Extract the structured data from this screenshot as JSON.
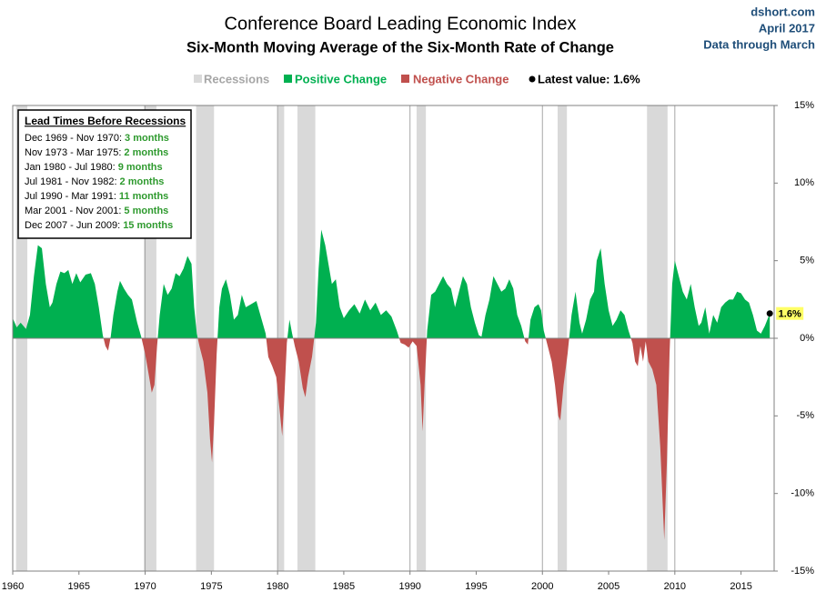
{
  "chart_data": {
    "type": "area",
    "title": "Conference Board Leading Economic Index",
    "subtitle": "Six-Month  Moving Average of the Six-Month  Rate of Change",
    "source": [
      "dshort.com",
      "April 2017",
      "Data through March"
    ],
    "legend_position": "top",
    "recessions": {
      "name": "Recessions",
      "color": "#d9d9d9",
      "ranges": [
        [
          1960.25,
          1961.1
        ],
        [
          1969.9,
          1970.85
        ],
        [
          1973.85,
          1975.2
        ],
        [
          1980.0,
          1980.5
        ],
        [
          1981.5,
          1982.85
        ],
        [
          1990.5,
          1991.2
        ],
        [
          2001.15,
          2001.85
        ],
        [
          2007.9,
          2009.45
        ]
      ]
    },
    "positive": {
      "name": "Positive Change",
      "color": "#00b050"
    },
    "negative": {
      "name": "Negative Change",
      "color": "#c0504d"
    },
    "latest": {
      "name": "Latest value: 1.6%",
      "x": 2017.17,
      "value": 1.6,
      "label": "1.6%",
      "color": "#000000",
      "highlight": "#ffff66"
    },
    "annotation": {
      "title": "Lead Times Before Recessions",
      "items": [
        {
          "period": "Dec 1969 - Nov 1970:",
          "lead": "3 months"
        },
        {
          "period": "Nov 1973 - Mar 1975:",
          "lead": "2 months"
        },
        {
          "period": "Jan 1980 - Jul 1980:",
          "lead": "9 months"
        },
        {
          "period": "Jul 1981 - Nov 1982:",
          "lead": "2 months"
        },
        {
          "period": "Jul 1990 - Mar 1991:",
          "lead": "11 months"
        },
        {
          "period": "Mar 2001 - Nov 2001:",
          "lead": "5 months"
        },
        {
          "period": "Dec 2007 - Jun 2009:",
          "lead": "15 months"
        }
      ]
    },
    "x": [
      1960.0,
      1960.3,
      1960.6,
      1961.0,
      1961.3,
      1961.6,
      1961.9,
      1962.2,
      1962.5,
      1962.8,
      1963.0,
      1963.3,
      1963.6,
      1963.9,
      1964.2,
      1964.5,
      1964.8,
      1965.1,
      1965.5,
      1965.9,
      1966.2,
      1966.5,
      1966.8,
      1967.0,
      1967.2,
      1967.4,
      1967.6,
      1967.9,
      1968.1,
      1968.4,
      1968.7,
      1969.0,
      1969.4,
      1969.7,
      1970.0,
      1970.3,
      1970.5,
      1970.7,
      1970.9,
      1971.1,
      1971.4,
      1971.7,
      1972.0,
      1972.3,
      1972.6,
      1972.9,
      1973.2,
      1973.5,
      1973.7,
      1973.9,
      1974.1,
      1974.4,
      1974.7,
      1974.9,
      1975.05,
      1975.2,
      1975.4,
      1975.6,
      1975.8,
      1976.1,
      1976.4,
      1976.7,
      1977.0,
      1977.3,
      1977.6,
      1978.0,
      1978.4,
      1978.8,
      1979.1,
      1979.3,
      1979.6,
      1979.9,
      1980.2,
      1980.35,
      1980.5,
      1980.7,
      1980.9,
      1981.1,
      1981.3,
      1981.6,
      1981.9,
      1982.1,
      1982.3,
      1982.6,
      1982.9,
      1983.1,
      1983.3,
      1983.6,
      1983.9,
      1984.1,
      1984.4,
      1984.7,
      1985.0,
      1985.4,
      1985.8,
      1986.2,
      1986.6,
      1987.0,
      1987.4,
      1987.8,
      1988.2,
      1988.6,
      1989.0,
      1989.3,
      1989.6,
      1989.9,
      1990.2,
      1990.5,
      1990.8,
      1990.95,
      1991.1,
      1991.3,
      1991.6,
      1991.9,
      1992.2,
      1992.5,
      1992.8,
      1993.1,
      1993.4,
      1993.7,
      1994.0,
      1994.3,
      1994.6,
      1994.9,
      1995.2,
      1995.4,
      1995.7,
      1996.0,
      1996.3,
      1996.6,
      1996.9,
      1997.2,
      1997.5,
      1997.8,
      1998.1,
      1998.4,
      1998.7,
      1998.9,
      1999.1,
      1999.4,
      1999.7,
      1999.9,
      2000.1,
      2000.4,
      2000.7,
      2000.95,
      2001.2,
      2001.35,
      2001.6,
      2001.9,
      2002.2,
      2002.5,
      2002.8,
      2003.0,
      2003.3,
      2003.6,
      2003.9,
      2004.1,
      2004.4,
      2004.7,
      2005.0,
      2005.3,
      2005.6,
      2005.9,
      2006.2,
      2006.5,
      2006.8,
      2007.0,
      2007.2,
      2007.4,
      2007.6,
      2007.8,
      2008.0,
      2008.3,
      2008.6,
      2008.9,
      2009.2,
      2009.4,
      2009.6,
      2009.8,
      2010.0,
      2010.3,
      2010.6,
      2010.9,
      2011.2,
      2011.5,
      2011.8,
      2012.0,
      2012.3,
      2012.6,
      2012.9,
      2013.2,
      2013.5,
      2013.8,
      2014.1,
      2014.4,
      2014.7,
      2015.0,
      2015.3,
      2015.6,
      2015.9,
      2016.2,
      2016.5,
      2016.8,
      2017.17
    ],
    "values": [
      1.3,
      0.7,
      1.0,
      0.6,
      1.5,
      4.0,
      6.0,
      5.8,
      3.5,
      2.0,
      2.3,
      3.5,
      4.3,
      4.2,
      4.4,
      3.5,
      4.2,
      3.6,
      4.1,
      4.2,
      3.5,
      2.0,
      0.2,
      -0.5,
      -0.8,
      0.1,
      1.5,
      3.0,
      3.7,
      3.2,
      2.8,
      2.5,
      1.0,
      0.1,
      -1.0,
      -2.5,
      -3.5,
      -3.0,
      -0.5,
      1.5,
      3.5,
      2.8,
      3.2,
      4.2,
      4.0,
      4.5,
      5.3,
      4.8,
      2.0,
      0.3,
      -0.5,
      -1.5,
      -3.5,
      -6.5,
      -8.0,
      -5.5,
      -1.0,
      2.0,
      3.2,
      3.8,
      2.8,
      1.2,
      1.5,
      2.8,
      2.0,
      2.2,
      2.4,
      1.2,
      0.3,
      -1.2,
      -1.8,
      -2.5,
      -5.0,
      -6.3,
      -4.0,
      -0.3,
      1.2,
      0.3,
      -0.5,
      -1.5,
      -3.2,
      -3.8,
      -2.5,
      -1.2,
      1.0,
      4.5,
      7.0,
      6.0,
      4.5,
      3.5,
      3.8,
      2.0,
      1.3,
      1.8,
      2.2,
      1.6,
      2.5,
      1.8,
      2.3,
      1.5,
      1.8,
      1.4,
      0.5,
      -0.3,
      -0.4,
      -0.6,
      -0.2,
      -0.5,
      -3.0,
      -6.0,
      -3.0,
      0.5,
      2.8,
      3.0,
      3.5,
      4.0,
      3.5,
      3.2,
      2.0,
      3.0,
      4.0,
      3.5,
      2.0,
      1.0,
      0.2,
      0.1,
      1.5,
      2.5,
      4.0,
      3.5,
      3.0,
      3.2,
      3.8,
      3.2,
      1.5,
      0.8,
      -0.2,
      -0.4,
      1.2,
      2.0,
      2.2,
      1.8,
      0.5,
      -0.5,
      -1.5,
      -3.0,
      -5.0,
      -5.3,
      -3.0,
      -1.0,
      1.5,
      3.0,
      1.0,
      0.3,
      1.2,
      2.5,
      3.0,
      5.0,
      5.8,
      3.5,
      1.8,
      0.8,
      1.2,
      1.8,
      1.5,
      0.5,
      -0.3,
      -1.5,
      -1.8,
      -0.5,
      -1.5,
      -0.2,
      -1.5,
      -2.0,
      -3.0,
      -7.0,
      -13.0,
      -8.0,
      -1.0,
      3.5,
      5.0,
      4.0,
      3.0,
      2.5,
      3.5,
      2.0,
      0.8,
      1.0,
      2.0,
      0.3,
      1.5,
      1.0,
      2.0,
      2.3,
      2.5,
      2.5,
      3.0,
      2.9,
      2.5,
      2.3,
      1.5,
      0.5,
      0.3,
      0.8,
      1.6
    ],
    "xlim": [
      1960,
      2017.5
    ],
    "xticks": [
      1960,
      1965,
      1970,
      1975,
      1980,
      1985,
      1990,
      1995,
      2000,
      2005,
      2010,
      2015
    ],
    "ylim": [
      -15,
      15
    ],
    "yticks": [
      {
        "value": 15,
        "label": "15%"
      },
      {
        "value": 10,
        "label": "10%"
      },
      {
        "value": 5,
        "label": "5%"
      },
      {
        "value": 0,
        "label": "0%"
      },
      {
        "value": -5,
        "label": "-5%"
      },
      {
        "value": -10,
        "label": "-10%"
      },
      {
        "value": -15,
        "label": "-15%"
      }
    ],
    "grid": true
  }
}
